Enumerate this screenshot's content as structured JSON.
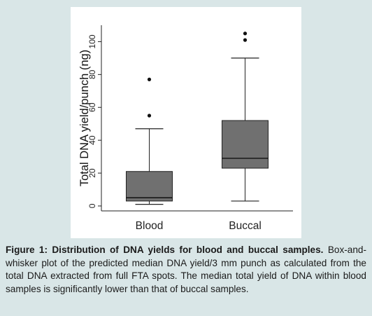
{
  "chart_data": {
    "type": "box",
    "ylabel": "Total DNA yield/punch (ng)",
    "ylim": [
      -3,
      110
    ],
    "yticks": [
      0,
      20,
      40,
      60,
      80,
      100
    ],
    "categories": [
      "Blood",
      "Buccal"
    ],
    "boxes": [
      {
        "category": "Blood",
        "whisker_low": 1,
        "q1": 3,
        "median": 5,
        "q3": 21,
        "whisker_high": 47,
        "outliers": [
          55,
          77
        ]
      },
      {
        "category": "Buccal",
        "whisker_low": 3,
        "q1": 23,
        "median": 29,
        "q3": 52,
        "whisker_high": 90,
        "outliers": [
          101,
          105
        ]
      }
    ],
    "box_fill": "#707070",
    "grid": false
  },
  "caption": {
    "title": "Figure 1: Distribution of DNA yields for blood and buccal samples.",
    "body": " Box-and-whisker plot of the predicted median DNA yield/3 mm punch as calculated from the total DNA extracted from full FTA spots. The median total yield of DNA within blood samples is significantly lower than that of buccal samples."
  }
}
